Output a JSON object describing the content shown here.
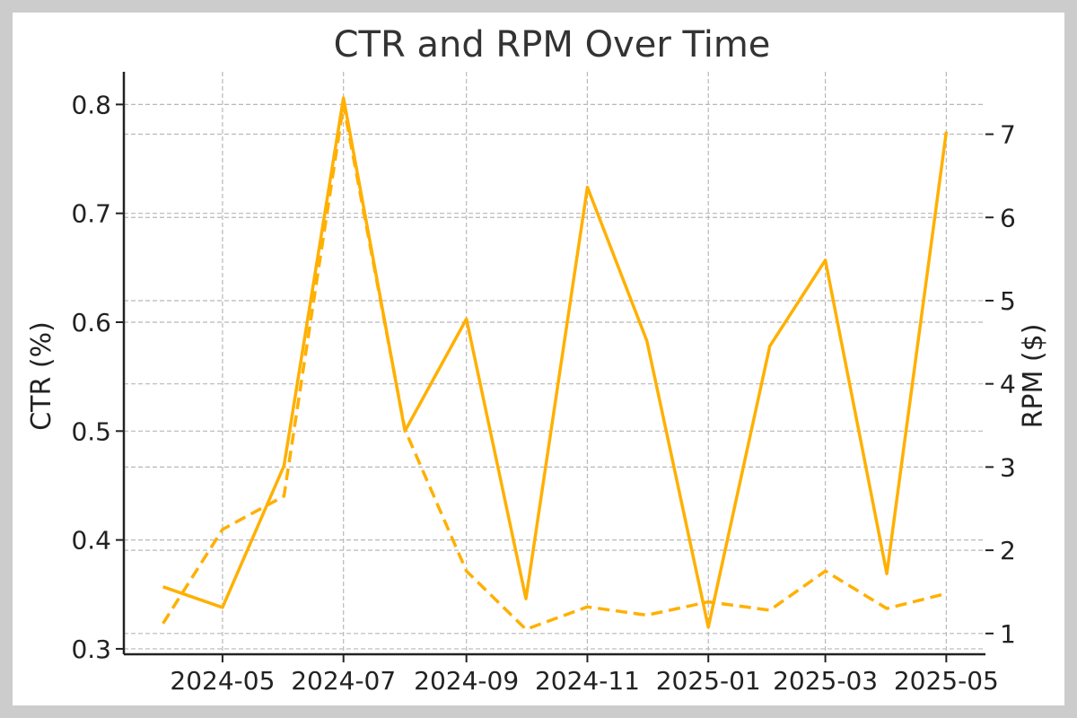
{
  "chart_data": {
    "type": "line",
    "title": "CTR and RPM Over Time",
    "x": [
      "2024-04-01",
      "2024-05-01",
      "2024-06-01",
      "2024-07-01",
      "2024-08-01",
      "2024-09-01",
      "2024-10-01",
      "2024-11-01",
      "2024-12-01",
      "2025-01-01",
      "2025-02-01",
      "2025-03-01",
      "2025-04-01",
      "2025-05-01"
    ],
    "xticks": [
      "2024-05",
      "2024-07",
      "2024-09",
      "2024-11",
      "2025-01",
      "2025-03",
      "2025-05"
    ],
    "ctr_axis": {
      "label": "CTR (%)",
      "ylim": [
        0.295,
        0.83
      ],
      "ticks": [
        "0.3",
        "0.4",
        "0.5",
        "0.6",
        "0.7",
        "0.8"
      ]
    },
    "rpm_axis": {
      "label": "RPM ($)",
      "ylim": [
        0.75,
        7.75
      ],
      "ticks": [
        "1",
        "2",
        "3",
        "4",
        "5",
        "6",
        "7"
      ]
    },
    "series": [
      {
        "axis": "ctr",
        "style": "solid",
        "values": [
          0.357,
          0.338,
          0.468,
          0.806,
          0.5,
          0.603,
          0.346,
          0.724,
          0.583,
          0.32,
          0.578,
          0.657,
          0.369,
          0.775
        ]
      },
      {
        "axis": "rpm",
        "style": "dashed",
        "values": [
          1.12,
          2.25,
          2.65,
          7.35,
          3.45,
          1.75,
          1.05,
          1.32,
          1.22,
          1.38,
          1.28,
          1.75,
          1.3,
          1.48
        ]
      }
    ],
    "color": "#FFB000",
    "grid": true
  }
}
